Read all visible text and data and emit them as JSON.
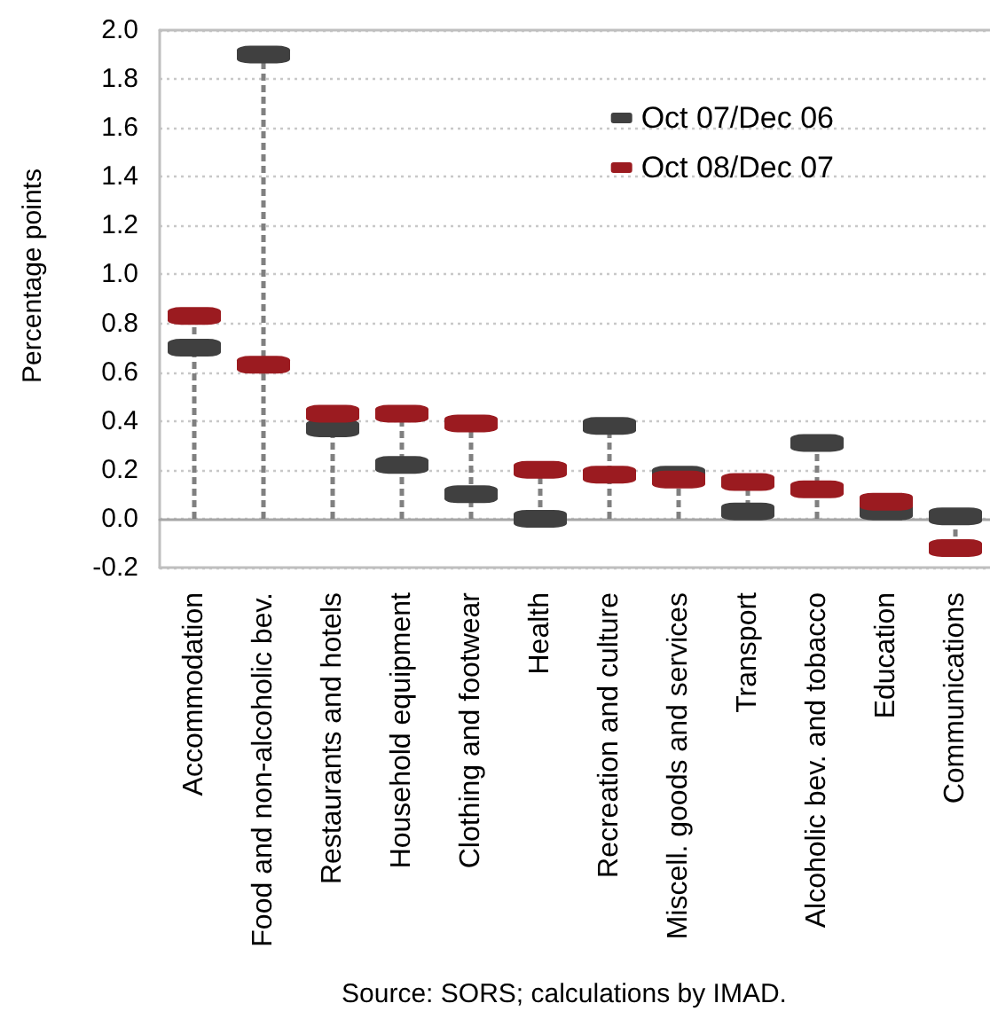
{
  "chart_data": {
    "type": "lollipop",
    "ylabel": "Percentage points",
    "annotations": [
      "Source: SORS; calculations by IMAD."
    ],
    "categories": [
      "Accommodation",
      "Food and non-alcoholic bev.",
      "Restaurants and hotels",
      "Household equipment",
      "Clothing and footwear",
      "Health",
      "Recreation and culture",
      "Miscell. goods and services",
      "Transport",
      "Alcoholic bev. and tobacco",
      "Education",
      "Communications"
    ],
    "series": [
      {
        "name": "Oct 07/Dec 06",
        "color": "#404040",
        "values": [
          0.7,
          1.9,
          0.37,
          0.22,
          0.1,
          0.0,
          0.38,
          0.18,
          0.03,
          0.31,
          0.03,
          0.01
        ]
      },
      {
        "name": "Oct 08/Dec 07",
        "color": "#9b1b20",
        "values": [
          0.83,
          0.63,
          0.43,
          0.43,
          0.39,
          0.2,
          0.18,
          0.16,
          0.15,
          0.12,
          0.07,
          -0.12
        ]
      }
    ],
    "ylim": [
      -0.2,
      2.0
    ],
    "yticks": [
      {
        "value": -0.2,
        "label": "-0.2"
      },
      {
        "value": 0,
        "label": "0.0"
      },
      {
        "value": 0.2,
        "label": "0.2"
      },
      {
        "value": 0.4,
        "label": "0.4"
      },
      {
        "value": 0.6,
        "label": "0.6"
      },
      {
        "value": 0.8,
        "label": "0.8"
      },
      {
        "value": 1.0,
        "label": "1.0"
      },
      {
        "value": 1.2,
        "label": "1.2"
      },
      {
        "value": 1.4,
        "label": "1.4"
      },
      {
        "value": 1.6,
        "label": "1.6"
      },
      {
        "value": 1.8,
        "label": "1.8"
      },
      {
        "value": 2.0,
        "label": "2.0"
      }
    ],
    "grid": "y",
    "legend": "top right",
    "marker": "square",
    "line_style": "dashed"
  }
}
